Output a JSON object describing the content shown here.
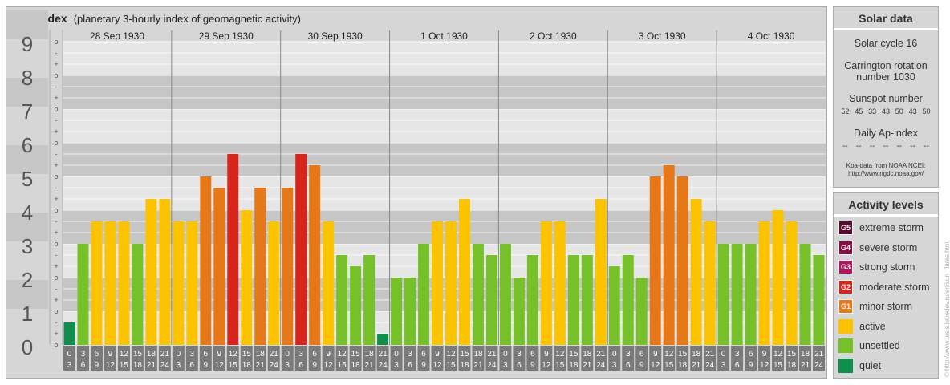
{
  "title": {
    "main": "Kpa-index",
    "sub": "(planetary 3-hourly index of geomagnetic activity)"
  },
  "chart_data": {
    "type": "bar",
    "title": "Kpa-index",
    "subtitle": "(planetary 3-hourly index of geomagnetic activity)",
    "ylim": [
      0,
      9
    ],
    "y_ticks": [
      "0",
      "1",
      "2",
      "3",
      "4",
      "5",
      "6",
      "7",
      "8",
      "9"
    ],
    "sub_ticks": [
      "-",
      "o",
      "+"
    ],
    "days": [
      "28 Sep 1930",
      "29 Sep 1930",
      "30 Sep 1930",
      "1 Oct 1930",
      "2 Oct 1930",
      "3 Oct 1930",
      "4 Oct 1930"
    ],
    "interval_labels": [
      [
        "0",
        "3"
      ],
      [
        "3",
        "6"
      ],
      [
        "6",
        "9"
      ],
      [
        "9",
        "12"
      ],
      [
        "12",
        "15"
      ],
      [
        "15",
        "18"
      ],
      [
        "18",
        "21"
      ],
      [
        "21",
        "24"
      ]
    ],
    "values": [
      0.667,
      3.0,
      3.667,
      3.667,
      3.667,
      3.0,
      4.333,
      4.333,
      3.667,
      3.667,
      5.0,
      4.667,
      5.667,
      4.0,
      4.667,
      3.667,
      4.667,
      5.667,
      5.333,
      3.667,
      2.667,
      2.333,
      2.667,
      0.333,
      2.0,
      2.0,
      3.0,
      3.667,
      3.667,
      4.333,
      3.0,
      2.667,
      3.0,
      2.0,
      2.667,
      3.667,
      3.667,
      2.667,
      2.667,
      4.333,
      2.333,
      2.667,
      2.0,
      5.0,
      5.333,
      5.0,
      4.333,
      3.667,
      3.0,
      3.0,
      3.0,
      3.667,
      4.0,
      3.667,
      3.0,
      2.667
    ],
    "level_colors": {
      "quiet": "#0f8f4b",
      "unsettled": "#76c12a",
      "active": "#fcc400",
      "G1": "#e77817",
      "G2": "#d8251b",
      "G3": "#b7125c",
      "G4": "#8c0b46",
      "G5": "#5a0b2e"
    }
  },
  "solar": {
    "title": "Solar data",
    "cycle": "Solar cycle 16",
    "carrington_line1": "Carrington rotation",
    "carrington_line2": "number 1030",
    "sunspot_title": "Sunspot number",
    "sunspots": [
      "52",
      "45",
      "33",
      "43",
      "50",
      "43",
      "50"
    ],
    "ap_title": "Daily Ap-index",
    "ap_values": [
      "--",
      "--",
      "--",
      "--",
      "--",
      "--",
      "--"
    ],
    "source_line1": "Kpa-data from NOAA NCEI:",
    "source_line2": "http://www.ngdc.noaa.gov/"
  },
  "levels": {
    "title": "Activity levels",
    "items": [
      {
        "code": "G5",
        "label": "extreme storm",
        "color": "#5a0b2e"
      },
      {
        "code": "G4",
        "label": "severe storm",
        "color": "#8c0b46"
      },
      {
        "code": "G3",
        "label": "strong storm",
        "color": "#b7125c"
      },
      {
        "code": "G2",
        "label": "moderate storm",
        "color": "#d8251b"
      },
      {
        "code": "G1",
        "label": "minor storm",
        "color": "#e77817"
      },
      {
        "code": "",
        "label": "active",
        "color": "#fcc400"
      },
      {
        "code": "",
        "label": "unsettled",
        "color": "#76c12a"
      },
      {
        "code": "",
        "label": "quiet",
        "color": "#0f8f4b"
      }
    ]
  },
  "watermark": "© http://www.tesis.lebedev.ru/en/sun_flares.html"
}
